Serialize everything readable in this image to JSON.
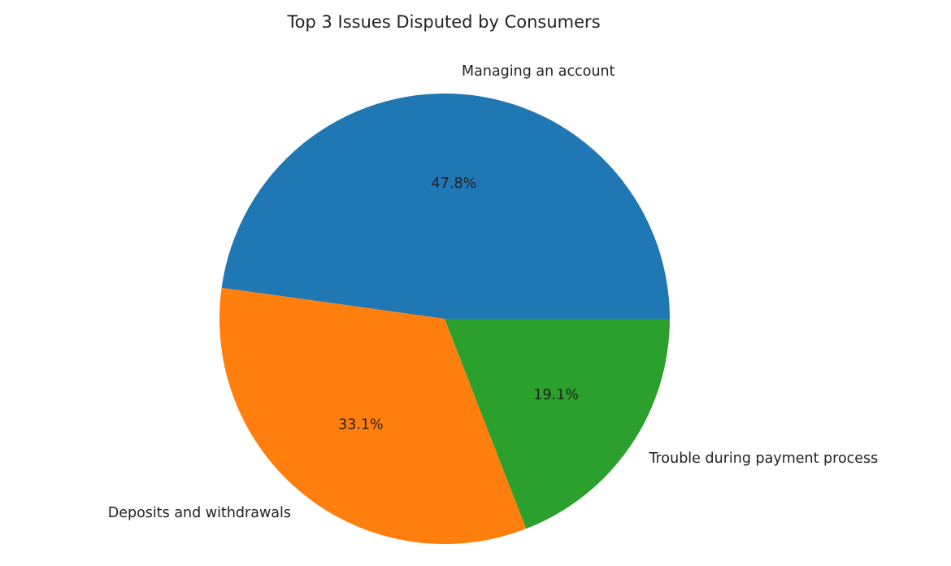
{
  "chart_data": {
    "type": "pie",
    "title": "Top 3 Issues Disputed by Consumers",
    "labels": [
      "Managing an account",
      "Deposits and withdrawals",
      "Trouble during payment process"
    ],
    "values": [
      47.8,
      33.1,
      19.1
    ],
    "autopct_labels": [
      "47.8%",
      "33.1%",
      "19.1%"
    ],
    "colors": [
      "#1f77b4",
      "#ff7f0e",
      "#2ca02c"
    ],
    "start_angle_degrees": 0,
    "direction": "counterclockwise"
  }
}
